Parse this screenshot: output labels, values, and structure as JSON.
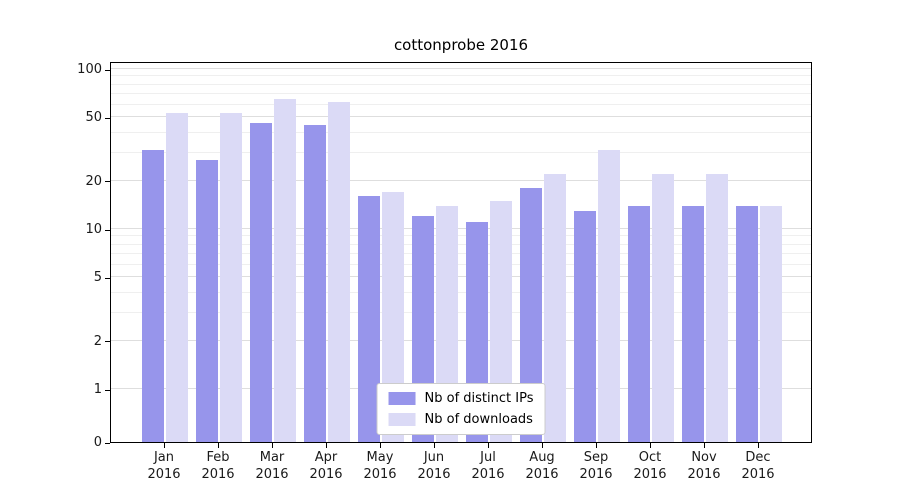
{
  "chart_data": {
    "type": "bar",
    "title": "cottonprobe 2016",
    "categories": [
      "Jan",
      "Feb",
      "Mar",
      "Apr",
      "May",
      "Jun",
      "Jul",
      "Aug",
      "Sep",
      "Oct",
      "Nov",
      "Dec"
    ],
    "category_year": "2016",
    "series": [
      {
        "name": "Nb of distinct IPs",
        "color": "#9795eb",
        "values": [
          31,
          27,
          46,
          45,
          16,
          12,
          11,
          18,
          13,
          14,
          14,
          14
        ]
      },
      {
        "name": "Nb of downloads",
        "color": "#dbdaf6",
        "values": [
          53,
          53,
          65,
          62,
          17,
          14,
          15,
          22,
          31,
          22,
          22,
          14
        ]
      }
    ],
    "yscale": "symlog",
    "ylim": [
      0,
      100
    ],
    "yticks": [
      0,
      1,
      2,
      5,
      10,
      20,
      50,
      100
    ],
    "minor_yticks": [
      3,
      4,
      6,
      7,
      8,
      9,
      30,
      40,
      60,
      70,
      80,
      90
    ],
    "grid": true,
    "legend_position": "lower center"
  }
}
